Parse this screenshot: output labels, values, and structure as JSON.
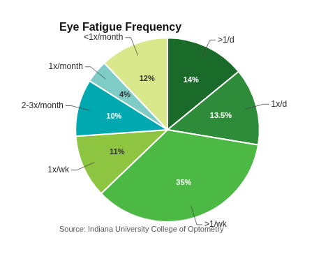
{
  "chart_data": {
    "type": "pie",
    "title": "Eye Fatigue Frequency",
    "source": "Source: Indiana University College of Optometry",
    "categories": [
      ">1/d",
      "1x/d",
      ">1/wk",
      "1x/wk",
      "2-3x/month",
      "1x/month",
      "<1x/month"
    ],
    "values": [
      14.0,
      13.5,
      35.0,
      11.0,
      10.0,
      4.0,
      12.0
    ],
    "value_labels": [
      "14%",
      "13.5%",
      "35%",
      "11%",
      "10%",
      "4%",
      "12%"
    ],
    "colors": [
      "#1a6b2a",
      "#2e8b3a",
      "#4cb944",
      "#8dc540",
      "#00a8b0",
      "#7eccc5",
      "#d8e88a"
    ],
    "data_labels": true,
    "legend": false
  }
}
